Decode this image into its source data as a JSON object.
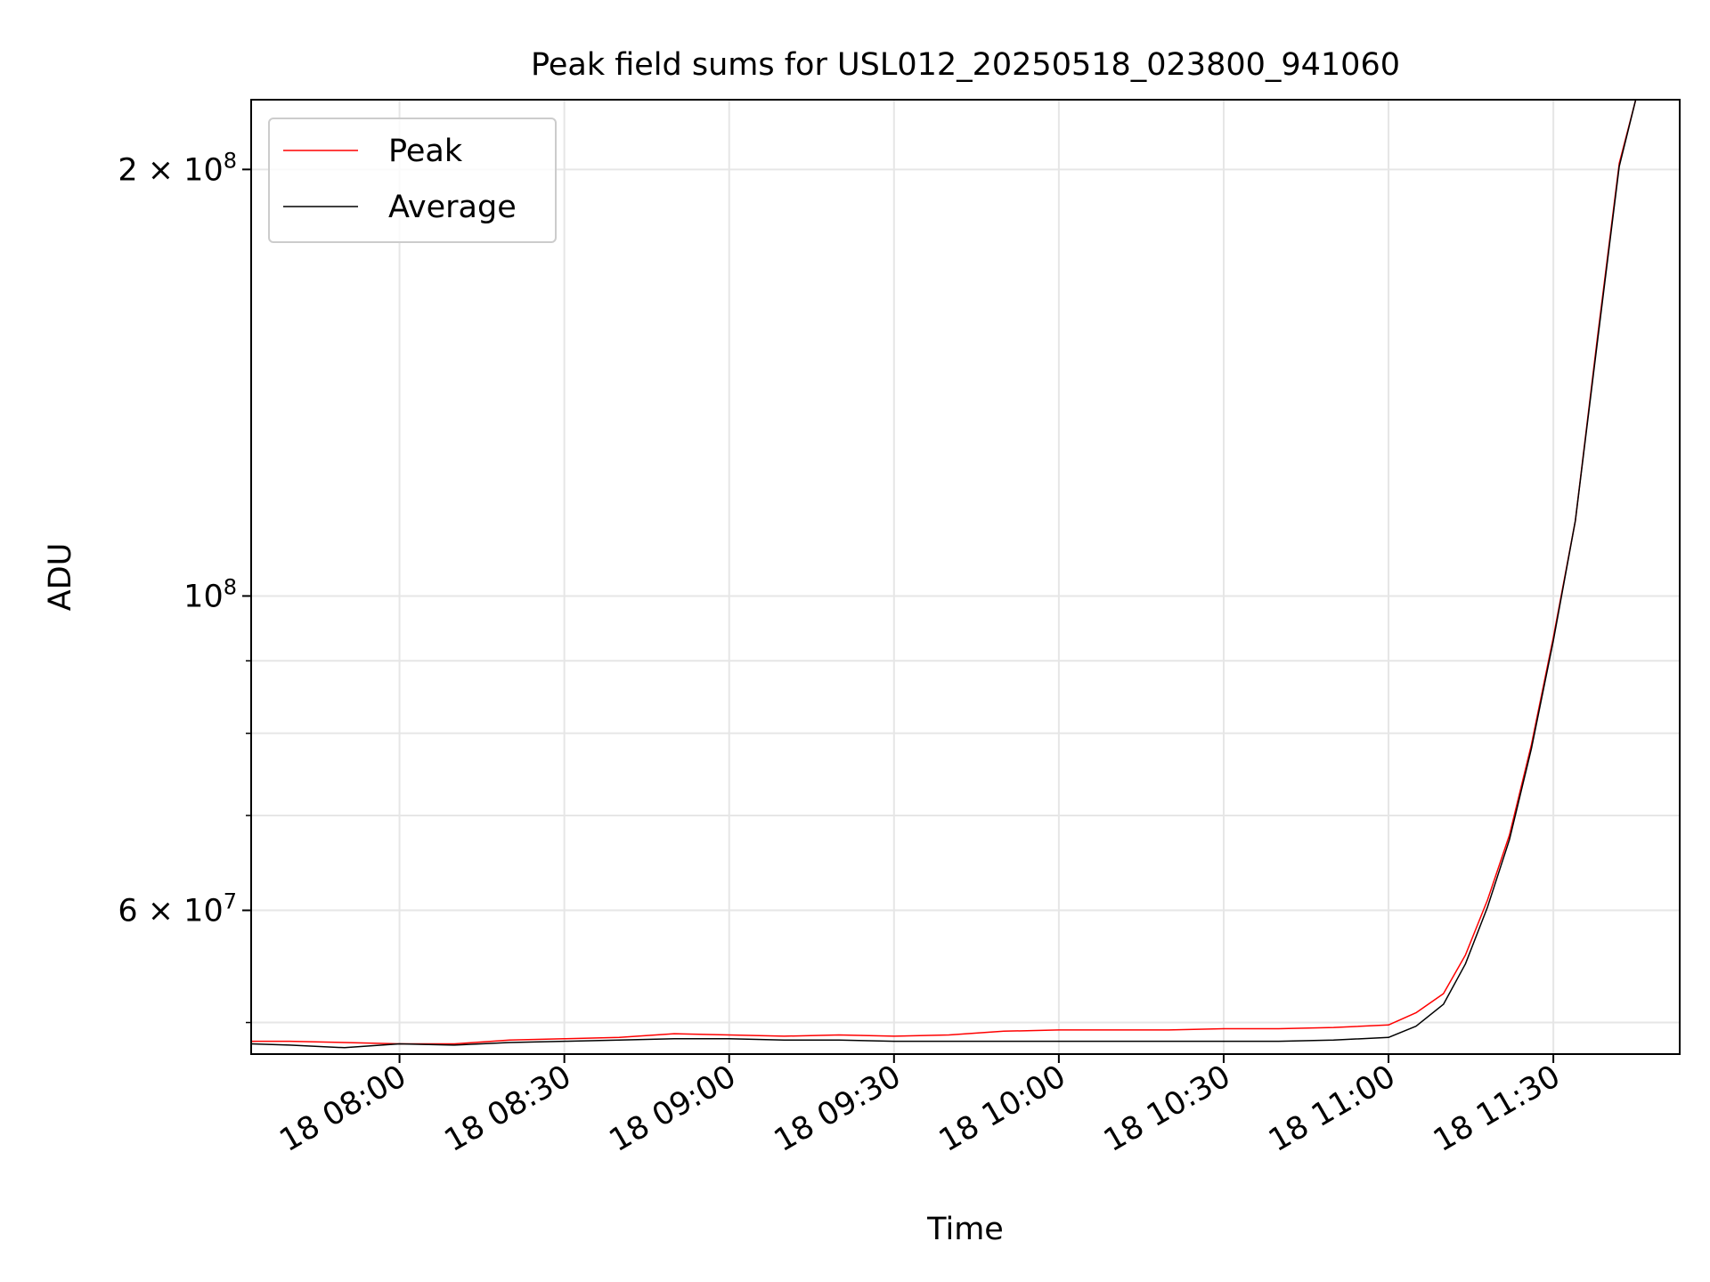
{
  "chart_data": {
    "type": "line",
    "title": "Peak field sums for USL012_20250518_023800_941060",
    "xlabel": "Time",
    "ylabel": "ADU",
    "xlim": [
      "2025-05-18 07:33",
      "2025-05-18 11:53"
    ],
    "ylim": [
      47500000,
      224000000
    ],
    "yscale": "log",
    "grid": true,
    "legend_position": "upper-left",
    "x_ticks": [
      {
        "value": "2025-05-18 08:00",
        "label": "18 08:00"
      },
      {
        "value": "2025-05-18 08:30",
        "label": "18 08:30"
      },
      {
        "value": "2025-05-18 09:00",
        "label": "18 09:00"
      },
      {
        "value": "2025-05-18 09:30",
        "label": "18 09:30"
      },
      {
        "value": "2025-05-18 10:00",
        "label": "18 10:00"
      },
      {
        "value": "2025-05-18 10:30",
        "label": "18 10:30"
      },
      {
        "value": "2025-05-18 11:00",
        "label": "18 11:00"
      },
      {
        "value": "2025-05-18 11:30",
        "label": "18 11:30"
      }
    ],
    "y_major_ticks": [
      {
        "value": 60000000,
        "mantissa": "6",
        "exponent": "7"
      },
      {
        "value": 100000000,
        "mantissa": "",
        "exponent": "8"
      },
      {
        "value": 200000000,
        "mantissa": "2",
        "exponent": "8"
      }
    ],
    "y_minor_ticks": [
      50000000,
      70000000,
      80000000,
      90000000
    ],
    "tick_base": "10",
    "tick_times": "×",
    "series": [
      {
        "name": "Peak",
        "color": "#ff0000",
        "x": [
          "2025-05-18 07:33",
          "2025-05-18 07:40",
          "2025-05-18 07:50",
          "2025-05-18 08:00",
          "2025-05-18 08:10",
          "2025-05-18 08:20",
          "2025-05-18 08:30",
          "2025-05-18 08:40",
          "2025-05-18 08:50",
          "2025-05-18 09:00",
          "2025-05-18 09:10",
          "2025-05-18 09:20",
          "2025-05-18 09:30",
          "2025-05-18 09:40",
          "2025-05-18 09:50",
          "2025-05-18 10:00",
          "2025-05-18 10:10",
          "2025-05-18 10:20",
          "2025-05-18 10:30",
          "2025-05-18 10:40",
          "2025-05-18 10:50",
          "2025-05-18 11:00",
          "2025-05-18 11:05",
          "2025-05-18 11:10",
          "2025-05-18 11:14",
          "2025-05-18 11:18",
          "2025-05-18 11:22",
          "2025-05-18 11:26",
          "2025-05-18 11:30",
          "2025-05-18 11:34",
          "2025-05-18 11:38",
          "2025-05-18 11:42",
          "2025-05-18 11:45"
        ],
        "y": [
          48500000,
          48500000,
          48400000,
          48300000,
          48300000,
          48600000,
          48700000,
          48800000,
          49100000,
          49000000,
          48900000,
          49000000,
          48900000,
          49000000,
          49300000,
          49400000,
          49400000,
          49400000,
          49500000,
          49500000,
          49600000,
          49800000,
          50800000,
          52400000,
          55800000,
          61000000,
          67800000,
          78500000,
          93500000,
          113000000,
          152000000,
          202000000,
          224000000
        ]
      },
      {
        "name": "Average",
        "color": "#000000",
        "x": [
          "2025-05-18 07:33",
          "2025-05-18 07:40",
          "2025-05-18 07:50",
          "2025-05-18 08:00",
          "2025-05-18 08:10",
          "2025-05-18 08:20",
          "2025-05-18 08:30",
          "2025-05-18 08:40",
          "2025-05-18 08:50",
          "2025-05-18 09:00",
          "2025-05-18 09:10",
          "2025-05-18 09:20",
          "2025-05-18 09:30",
          "2025-05-18 09:40",
          "2025-05-18 09:50",
          "2025-05-18 10:00",
          "2025-05-18 10:10",
          "2025-05-18 10:20",
          "2025-05-18 10:30",
          "2025-05-18 10:40",
          "2025-05-18 10:50",
          "2025-05-18 11:00",
          "2025-05-18 11:05",
          "2025-05-18 11:10",
          "2025-05-18 11:14",
          "2025-05-18 11:18",
          "2025-05-18 11:22",
          "2025-05-18 11:26",
          "2025-05-18 11:30",
          "2025-05-18 11:34",
          "2025-05-18 11:38",
          "2025-05-18 11:42",
          "2025-05-18 11:45"
        ],
        "y": [
          48300000,
          48200000,
          48000000,
          48300000,
          48200000,
          48400000,
          48500000,
          48600000,
          48700000,
          48700000,
          48600000,
          48600000,
          48500000,
          48500000,
          48500000,
          48500000,
          48500000,
          48500000,
          48500000,
          48500000,
          48600000,
          48800000,
          49700000,
          51500000,
          55000000,
          60300000,
          67300000,
          78000000,
          93000000,
          113000000,
          151000000,
          201000000,
          224000000
        ]
      }
    ]
  }
}
